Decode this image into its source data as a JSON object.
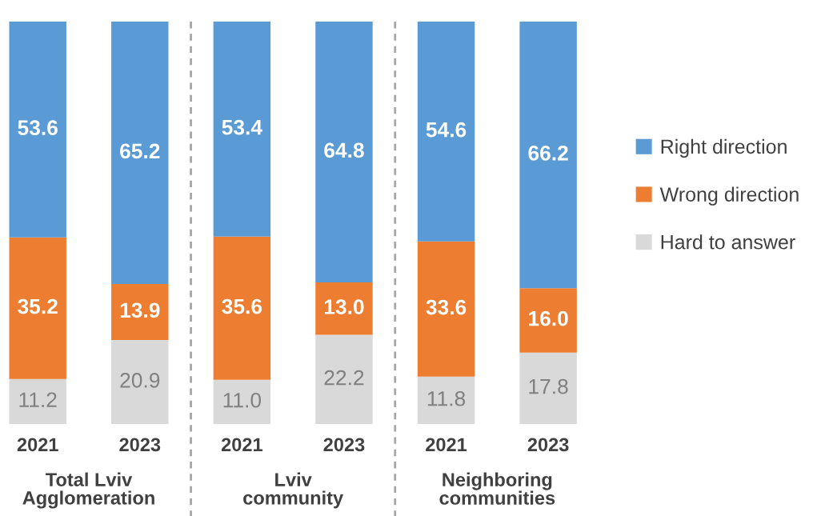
{
  "chart_data": {
    "type": "bar",
    "stacked": true,
    "categories": [
      "2021",
      "2023",
      "2021",
      "2023",
      "2021",
      "2023"
    ],
    "series": [
      {
        "name": "Hard to answer",
        "color": "#d9d9d9",
        "values": [
          11.2,
          20.9,
          11.0,
          22.2,
          11.8,
          17.8
        ],
        "value_labels": [
          "11.2",
          "20.9",
          "11.0",
          "22.2",
          "11.8",
          "17.8"
        ]
      },
      {
        "name": "Wrong direction",
        "color": "#ed7d31",
        "values": [
          35.2,
          13.9,
          35.6,
          13.0,
          33.6,
          16.0
        ],
        "value_labels": [
          "35.2",
          "13.9",
          "35.6",
          "13.0",
          "33.6",
          "16.0"
        ]
      },
      {
        "name": "Right direction",
        "color": "#5b9bd5",
        "values": [
          53.6,
          65.2,
          53.4,
          64.8,
          54.6,
          66.2
        ],
        "value_labels": [
          "53.6",
          "65.2",
          "53.4",
          "64.8",
          "54.6",
          "66.2"
        ]
      }
    ],
    "ylim": [
      0,
      100
    ],
    "tick_labels": "x",
    "legend": "right",
    "annotations": [
      "Total Lviv\nAgglomeration",
      "Lviv\ncommunity",
      "Neighboring\ncommunities"
    ]
  }
}
